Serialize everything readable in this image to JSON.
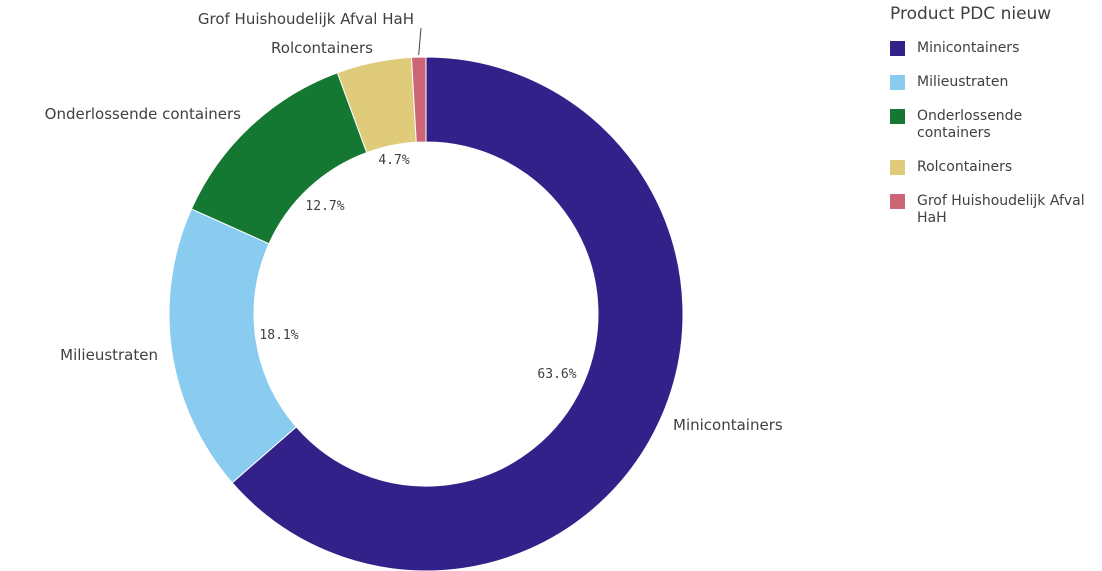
{
  "chart_data": {
    "type": "pie",
    "variant": "donut",
    "legend_title": "Product PDC nieuw",
    "legend_position": "right",
    "slices": [
      {
        "label": "Minicontainers",
        "value": 63.6,
        "value_label": "63.6%",
        "color": "#33218A"
      },
      {
        "label": "Milieustraten",
        "value": 18.1,
        "value_label": "18.1%",
        "color": "#89CCEF"
      },
      {
        "label": "Onderlossende containers",
        "value": 12.7,
        "value_label": "12.7%",
        "color": "#147832"
      },
      {
        "label": "Rolcontainers",
        "value": 4.7,
        "value_label": "4.7%",
        "color": "#DFCB7A"
      },
      {
        "label": "Grof Huishoudelijk Afval HaH",
        "value": 0.9,
        "value_label": "",
        "color": "#CC6677"
      }
    ],
    "legend": [
      {
        "label": "Minicontainers",
        "color": "#33218A"
      },
      {
        "label": "Milieustraten",
        "color": "#89CCEF"
      },
      {
        "label": "Onderlossende containers",
        "color": "#147832"
      },
      {
        "label": "Rolcontainers",
        "color": "#DFCB7A"
      },
      {
        "label": "Grof Huishoudelijk Afval HaH",
        "color": "#CC6677"
      }
    ]
  }
}
